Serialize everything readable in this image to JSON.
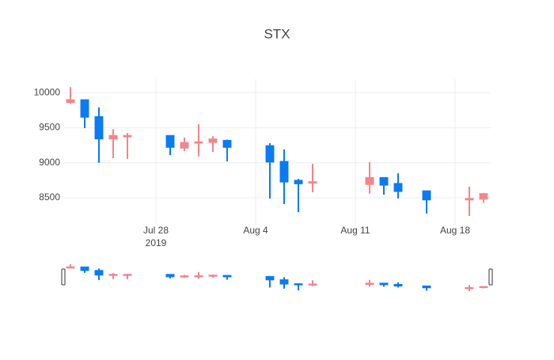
{
  "chart_data": {
    "type": "candlestick",
    "title": "STX",
    "x": [
      "2019-07-22",
      "2019-07-23",
      "2019-07-24",
      "2019-07-25",
      "2019-07-26",
      "2019-07-29",
      "2019-07-30",
      "2019-07-31",
      "2019-08-01",
      "2019-08-02",
      "2019-08-05",
      "2019-08-06",
      "2019-08-07",
      "2019-08-08",
      "2019-08-12",
      "2019-08-13",
      "2019-08-14",
      "2019-08-16",
      "2019-08-19",
      "2019-08-20"
    ],
    "open": [
      9860,
      9900,
      9660,
      9340,
      9370,
      9390,
      9210,
      9280,
      9290,
      9320,
      9245,
      9020,
      8750,
      8710,
      8690,
      8790,
      8705,
      8600,
      8470,
      8480
    ],
    "high": [
      10080,
      9900,
      9790,
      9480,
      9425,
      9390,
      9360,
      9550,
      9380,
      9330,
      9280,
      9190,
      8770,
      8985,
      9010,
      8790,
      8850,
      8600,
      8660,
      8570
    ],
    "low": [
      9840,
      9495,
      9000,
      9065,
      9055,
      9110,
      9165,
      9090,
      9155,
      9020,
      8490,
      8410,
      8295,
      8580,
      8560,
      8545,
      8490,
      8275,
      8240,
      8430
    ],
    "close": [
      9900,
      9650,
      9340,
      9390,
      9390,
      9220,
      9290,
      9300,
      9340,
      9220,
      9010,
      8725,
      8700,
      8730,
      8790,
      8680,
      8590,
      8470,
      8490,
      8560
    ],
    "increasing_color": "#f4858a",
    "decreasing_color": "#0a7bf2",
    "xlim": [
      "2019-07-21T12:00",
      "2019-08-20T12:00"
    ],
    "xticks": [
      {
        "value": "2019-07-28",
        "label": "Jul 28",
        "label2": "2019"
      },
      {
        "value": "2019-08-04",
        "label": "Aug 4"
      },
      {
        "value": "2019-08-11",
        "label": "Aug 11"
      },
      {
        "value": "2019-08-18",
        "label": "Aug 18"
      }
    ],
    "ylim": [
      8105,
      10194
    ],
    "yticks": [
      8500,
      9000,
      9500,
      10000
    ],
    "grid": true,
    "rangeslider": true
  }
}
